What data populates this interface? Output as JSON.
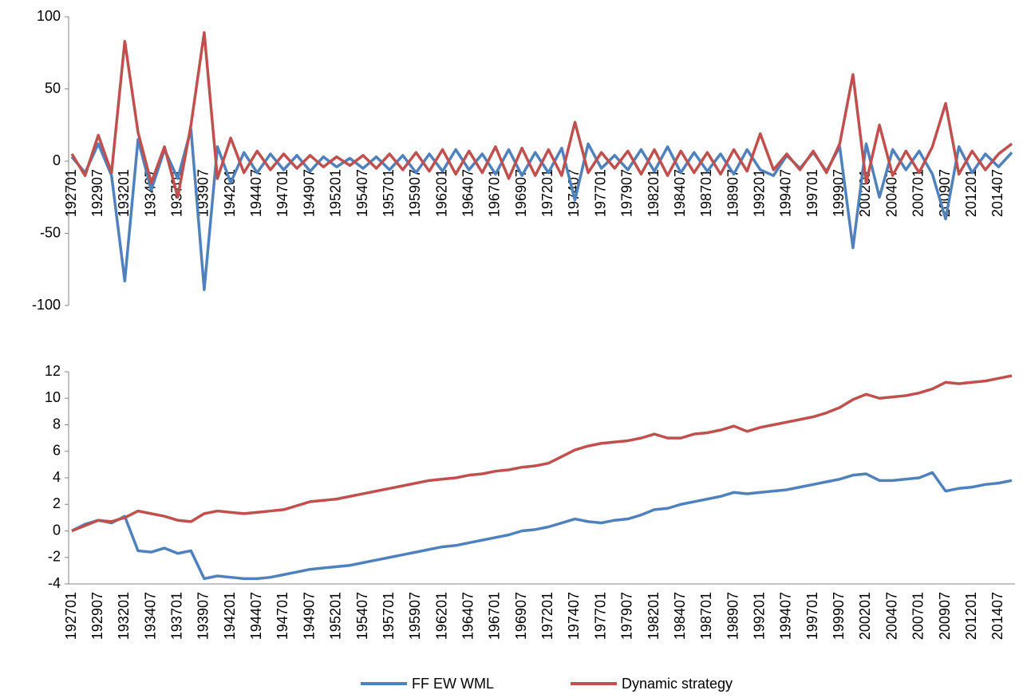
{
  "chart_data": [
    {
      "type": "line",
      "categories": [
        "192701",
        null,
        "192907",
        null,
        "193201",
        null,
        "193407",
        null,
        "193701",
        null,
        "193907",
        null,
        "194201",
        null,
        "194407",
        null,
        "194701",
        null,
        "194907",
        null,
        "195201",
        null,
        "195407",
        null,
        "195701",
        null,
        "195907",
        null,
        "196201",
        null,
        "196407",
        null,
        "196701",
        null,
        "196907",
        null,
        "197201",
        null,
        "197407",
        null,
        "197701",
        null,
        "197907",
        null,
        "198201",
        null,
        "198407",
        null,
        "198701",
        null,
        "198907",
        null,
        "199201",
        null,
        "199407",
        null,
        "199701",
        null,
        "199907",
        null,
        "200201",
        null,
        "200407",
        null,
        "200701",
        null,
        "200907",
        null,
        "201201",
        null,
        "201407",
        null
      ],
      "ylim": [
        -100,
        100
      ],
      "yticks": [
        -100,
        -50,
        0,
        50,
        100
      ],
      "series": [
        {
          "color": "#4f81bd",
          "values": [
            3,
            -8,
            12,
            -10,
            -83,
            15,
            -20,
            8,
            -12,
            22,
            -89,
            10,
            -15,
            6,
            -8,
            5,
            -6,
            4,
            -7,
            3,
            -4,
            2,
            -5,
            3,
            -6,
            4,
            -8,
            5,
            -7,
            8,
            -6,
            5,
            -9,
            8,
            -10,
            6,
            -8,
            9,
            -27,
            12,
            -5,
            4,
            -6,
            8,
            -7,
            10,
            -8,
            6,
            -7,
            5,
            -9,
            8,
            -6,
            -10,
            4,
            -5,
            6,
            -7,
            10,
            -60,
            12,
            -25,
            8,
            -6,
            7,
            -9,
            -40,
            10,
            -8,
            5,
            -4,
            6
          ]
        },
        {
          "color": "#c0504d",
          "values": [
            5,
            -10,
            18,
            -8,
            83,
            20,
            -15,
            10,
            -25,
            25,
            89,
            -12,
            16,
            -8,
            7,
            -6,
            5,
            -5,
            4,
            -4,
            3,
            -3,
            4,
            -5,
            5,
            -6,
            6,
            -7,
            8,
            -9,
            7,
            -8,
            10,
            -12,
            9,
            -10,
            8,
            -10,
            27,
            -8,
            6,
            -5,
            7,
            -9,
            8,
            -10,
            7,
            -8,
            6,
            -9,
            8,
            -7,
            19,
            -6,
            5,
            -6,
            7,
            -8,
            12,
            60,
            -15,
            25,
            -10,
            7,
            -8,
            10,
            40,
            -9,
            7,
            -6,
            5,
            12
          ]
        }
      ]
    },
    {
      "type": "line",
      "categories": [
        "192701",
        null,
        "192907",
        null,
        "193201",
        null,
        "193407",
        null,
        "193701",
        null,
        "193907",
        null,
        "194201",
        null,
        "194407",
        null,
        "194701",
        null,
        "194907",
        null,
        "195201",
        null,
        "195407",
        null,
        "195701",
        null,
        "195907",
        null,
        "196201",
        null,
        "196407",
        null,
        "196701",
        null,
        "196907",
        null,
        "197201",
        null,
        "197407",
        null,
        "197701",
        null,
        "197907",
        null,
        "198201",
        null,
        "198407",
        null,
        "198701",
        null,
        "198907",
        null,
        "199201",
        null,
        "199407",
        null,
        "199701",
        null,
        "199907",
        null,
        "200201",
        null,
        "200407",
        null,
        "200701",
        null,
        "200907",
        null,
        "201201",
        null,
        "201407",
        null
      ],
      "ylim": [
        -4,
        12
      ],
      "yticks": [
        -4,
        -2,
        0,
        2,
        4,
        6,
        8,
        10,
        12
      ],
      "legend": "bottom",
      "series": [
        {
          "name": "FF EW WML",
          "color": "#4f81bd",
          "values": [
            0.0,
            0.5,
            0.8,
            0.6,
            1.1,
            -1.5,
            -1.6,
            -1.3,
            -1.7,
            -1.5,
            -3.6,
            -3.4,
            -3.5,
            -3.6,
            -3.6,
            -3.5,
            -3.3,
            -3.1,
            -2.9,
            -2.8,
            -2.7,
            -2.6,
            -2.4,
            -2.2,
            -2.0,
            -1.8,
            -1.6,
            -1.4,
            -1.2,
            -1.1,
            -0.9,
            -0.7,
            -0.5,
            -0.3,
            0.0,
            0.1,
            0.3,
            0.6,
            0.9,
            0.7,
            0.6,
            0.8,
            0.9,
            1.2,
            1.6,
            1.7,
            2.0,
            2.2,
            2.4,
            2.6,
            2.9,
            2.8,
            2.9,
            3.0,
            3.1,
            3.3,
            3.5,
            3.7,
            3.9,
            4.2,
            4.3,
            3.8,
            3.8,
            3.9,
            4.0,
            4.4,
            3.0,
            3.2,
            3.3,
            3.5,
            3.6,
            3.8
          ]
        },
        {
          "name": "Dynamic strategy",
          "color": "#c0504d",
          "values": [
            0,
            0.4,
            0.8,
            0.7,
            1.0,
            1.5,
            1.3,
            1.1,
            0.8,
            0.7,
            1.3,
            1.5,
            1.4,
            1.3,
            1.4,
            1.5,
            1.6,
            1.9,
            2.2,
            2.3,
            2.4,
            2.6,
            2.8,
            3.0,
            3.2,
            3.4,
            3.6,
            3.8,
            3.9,
            4.0,
            4.2,
            4.3,
            4.5,
            4.6,
            4.8,
            4.9,
            5.1,
            5.6,
            6.1,
            6.4,
            6.6,
            6.7,
            6.8,
            7.0,
            7.3,
            7.0,
            7.0,
            7.3,
            7.4,
            7.6,
            7.9,
            7.5,
            7.8,
            8.0,
            8.2,
            8.4,
            8.6,
            8.9,
            9.3,
            9.9,
            10.3,
            10.0,
            10.1,
            10.2,
            10.4,
            10.7,
            11.2,
            11.1,
            11.2,
            11.3,
            11.5,
            11.7
          ]
        }
      ]
    }
  ]
}
